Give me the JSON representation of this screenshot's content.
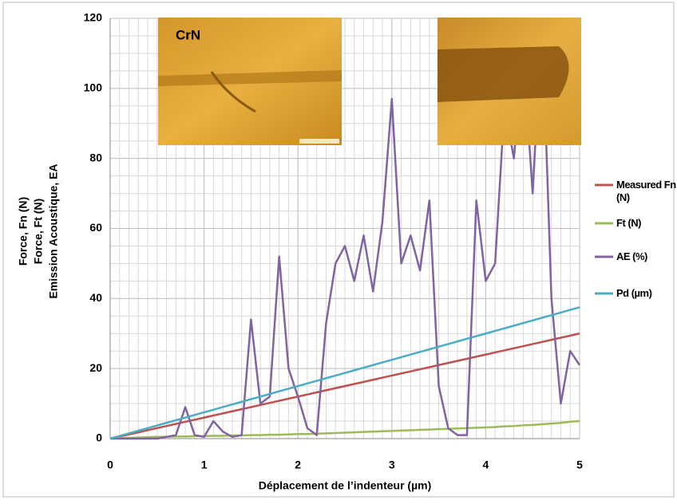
{
  "chart_data": {
    "type": "line",
    "x_label": "Déplacement de l’indenteur (µm)",
    "y_label": [
      "Force, Fn (N)",
      "Force, Ft (N)",
      "Emission Acoustique, EA"
    ],
    "inset_label": "CrN",
    "x": [
      0,
      0.1,
      0.2,
      0.3,
      0.4,
      0.5,
      0.6,
      0.7,
      0.8,
      0.9,
      1,
      1.1,
      1.2,
      1.3,
      1.4,
      1.5,
      1.6,
      1.7,
      1.8,
      1.9,
      2,
      2.1,
      2.2,
      2.3,
      2.4,
      2.5,
      2.6,
      2.7,
      2.8,
      2.9,
      3,
      3.1,
      3.2,
      3.3,
      3.4,
      3.5,
      3.6,
      3.7,
      3.8,
      3.9,
      4,
      4.1,
      4.2,
      4.3,
      4.4,
      4.5,
      4.6,
      4.7,
      4.8,
      4.9,
      5
    ],
    "series": [
      {
        "name": "Measured Fn (N)",
        "color": "#c0504d",
        "values": [
          0,
          0.6,
          1.2,
          1.8,
          2.4,
          3,
          3.6,
          4.2,
          4.8,
          5.4,
          6,
          6.6,
          7.2,
          7.8,
          8.4,
          9,
          9.6,
          10.2,
          10.8,
          11.4,
          12,
          12.6,
          13.2,
          13.8,
          14.4,
          15,
          15.6,
          16.2,
          16.8,
          17.4,
          18,
          18.6,
          19.2,
          19.8,
          20.4,
          21,
          21.6,
          22.2,
          22.8,
          23.4,
          24,
          24.6,
          25.2,
          25.8,
          26.4,
          27,
          27.6,
          28.2,
          28.8,
          29.4,
          30
        ]
      },
      {
        "name": "Ft (N)",
        "color": "#9bbb59",
        "values": [
          0,
          0.1,
          0.2,
          0.3,
          0.4,
          0.5,
          0.5,
          0.6,
          0.6,
          0.7,
          0.7,
          0.8,
          0.8,
          0.9,
          0.9,
          1,
          1,
          1.1,
          1.1,
          1.2,
          1.3,
          1.3,
          1.4,
          1.5,
          1.6,
          1.7,
          1.8,
          1.9,
          2,
          2.1,
          2.2,
          2.3,
          2.4,
          2.5,
          2.6,
          2.7,
          2.8,
          2.9,
          3,
          3.1,
          3.2,
          3.3,
          3.5,
          3.6,
          3.8,
          3.9,
          4.1,
          4.3,
          4.5,
          4.8,
          5
        ]
      },
      {
        "name": "AE (%)",
        "color": "#8064a2",
        "values": [
          0,
          0,
          0,
          0,
          0,
          0,
          0.5,
          1,
          9,
          1,
          0.5,
          5,
          2,
          0.5,
          1,
          34,
          10,
          12,
          52,
          20,
          12,
          3,
          1,
          33,
          50,
          55,
          45,
          58,
          42,
          62,
          97,
          50,
          58,
          48,
          68,
          15,
          3,
          1,
          1,
          68,
          45,
          50,
          95,
          80,
          110,
          70,
          120,
          40,
          10,
          25,
          21
        ]
      },
      {
        "name": "Pd (µm)",
        "color": "#4bacc6",
        "values": [
          0,
          0.75,
          1.5,
          2.25,
          3,
          3.75,
          4.5,
          5.25,
          6,
          6.75,
          7.5,
          8.25,
          9,
          9.75,
          10.5,
          11.25,
          12,
          12.75,
          13.5,
          14.25,
          15,
          15.75,
          16.5,
          17.25,
          18,
          18.75,
          19.5,
          20.25,
          21,
          21.75,
          22.5,
          23.25,
          24,
          24.75,
          25.5,
          26.25,
          27,
          27.75,
          28.5,
          29.25,
          30,
          30.75,
          31.5,
          32.25,
          33,
          33.75,
          34.5,
          35.25,
          36,
          36.75,
          37.5
        ]
      }
    ],
    "xlim": [
      0,
      5
    ],
    "xticks": [
      0,
      1,
      2,
      3,
      4,
      5
    ],
    "ylim": [
      0,
      120
    ],
    "yticks": [
      0,
      20,
      40,
      60,
      80,
      100,
      120
    ],
    "grid": true,
    "legend": "right"
  }
}
